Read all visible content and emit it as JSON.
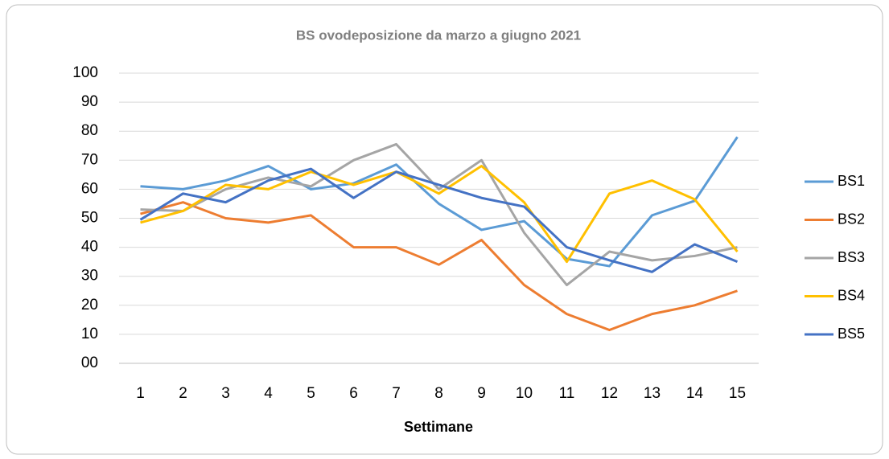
{
  "chart_data": {
    "type": "line",
    "title": "BS ovodeposizione da marzo a giugno 2021",
    "x_label": "Settimane",
    "categories": [
      1,
      2,
      3,
      4,
      5,
      6,
      7,
      8,
      9,
      10,
      11,
      12,
      13,
      14,
      15
    ],
    "series": [
      {
        "name": "BS1",
        "color": "#5b9bd5",
        "values": [
          61,
          60,
          63,
          68,
          60,
          62,
          68.5,
          55,
          46,
          49,
          36,
          33.5,
          51,
          56,
          78
        ]
      },
      {
        "name": "BS2",
        "color": "#ed7d31",
        "values": [
          51.5,
          55.5,
          50,
          48.5,
          51,
          40,
          40,
          34,
          42.5,
          27,
          17,
          11.5,
          17,
          20,
          25
        ]
      },
      {
        "name": "BS3",
        "color": "#a5a5a5",
        "values": [
          53,
          52.5,
          60,
          64,
          61,
          70,
          75.5,
          60,
          70,
          45,
          27,
          38.5,
          35.5,
          37,
          40
        ]
      },
      {
        "name": "BS4",
        "color": "#ffc000",
        "values": [
          48.5,
          52.5,
          61.5,
          60,
          66,
          61.5,
          66,
          58.5,
          68,
          55.5,
          35,
          58.5,
          63,
          56.5,
          38.5
        ]
      },
      {
        "name": "BS5",
        "color": "#4472c4",
        "values": [
          49.5,
          58.5,
          55.5,
          63,
          67,
          57,
          66,
          61.5,
          57,
          54,
          40,
          35.5,
          31.5,
          41,
          35
        ]
      }
    ],
    "ylim": [
      0,
      100
    ],
    "yticks": [
      {
        "value": 0,
        "label": "00"
      },
      10,
      20,
      30,
      40,
      50,
      60,
      70,
      80,
      90,
      100
    ],
    "grid": true,
    "legend": "right"
  }
}
